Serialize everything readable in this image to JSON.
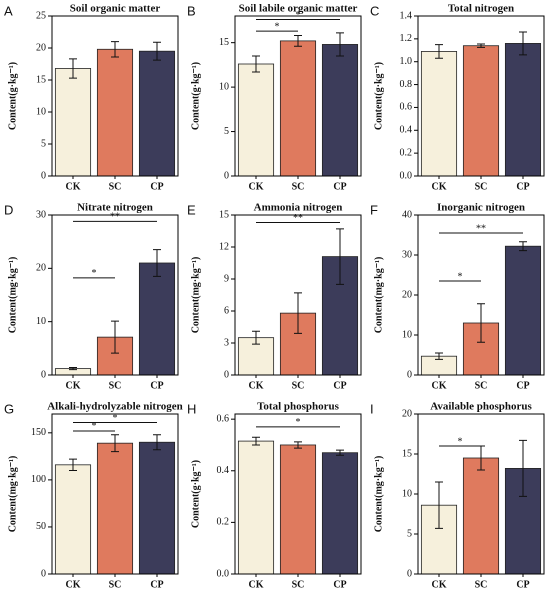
{
  "chart_data": [
    {
      "type": "bar",
      "panel": "A",
      "title": "Soil organic matter",
      "ylabel": "Content(g·kg⁻¹)",
      "categories": [
        "CK",
        "SC",
        "CP"
      ],
      "values": [
        16.8,
        19.8,
        19.5
      ],
      "errors": [
        1.5,
        1.2,
        1.4
      ],
      "colors": [
        "#f6f0dc",
        "#df7a5e",
        "#3c3c5a"
      ],
      "ylim": [
        0,
        25
      ],
      "yticks": [
        0,
        5,
        10,
        15,
        20,
        25
      ],
      "annotations": []
    },
    {
      "type": "bar",
      "panel": "B",
      "title": "Soil labile organic matter",
      "ylabel": "Content(g·kg⁻¹)",
      "categories": [
        "CK",
        "SC",
        "CP"
      ],
      "values": [
        12.6,
        15.2,
        14.8
      ],
      "errors": [
        0.9,
        0.6,
        1.3
      ],
      "colors": [
        "#f6f0dc",
        "#df7a5e",
        "#3c3c5a"
      ],
      "ylim": [
        0,
        18
      ],
      "yticks": [
        0,
        5,
        10,
        15
      ],
      "annotations": [
        {
          "label": "*",
          "from": 0,
          "to": 1,
          "y": 16.3
        },
        {
          "label": "*",
          "from": 0,
          "to": 2,
          "y": 17.6
        }
      ]
    },
    {
      "type": "bar",
      "panel": "C",
      "title": "Total nitrogen",
      "ylabel": "Content(g·kg⁻¹)",
      "categories": [
        "CK",
        "SC",
        "CP"
      ],
      "values": [
        1.09,
        1.14,
        1.16
      ],
      "errors": [
        0.06,
        0.015,
        0.1
      ],
      "colors": [
        "#f6f0dc",
        "#df7a5e",
        "#3c3c5a"
      ],
      "ylim": [
        0,
        1.4
      ],
      "yticks": [
        {
          "value": 0,
          "label": "0.0"
        },
        0.2,
        0.4,
        0.6,
        0.8,
        {
          "value": 1,
          "label": "1.0"
        },
        1.2,
        1.4
      ],
      "annotations": []
    },
    {
      "type": "bar",
      "panel": "D",
      "title": "Nitrate nitrogen",
      "ylabel": "Content(mg·kg⁻¹)",
      "categories": [
        "CK",
        "SC",
        "CP"
      ],
      "values": [
        1.2,
        7.1,
        21
      ],
      "errors": [
        0.2,
        3,
        2.5
      ],
      "colors": [
        "#f6f0dc",
        "#df7a5e",
        "#3c3c5a"
      ],
      "ylim": [
        0,
        30
      ],
      "yticks": [
        0,
        10,
        20,
        30
      ],
      "annotations": [
        {
          "label": "*",
          "from": 0,
          "to": 1,
          "y": 18.2
        },
        {
          "label": "**",
          "from": 0,
          "to": 2,
          "y": 28.8
        }
      ]
    },
    {
      "type": "bar",
      "panel": "E",
      "title": "Ammonia nitrogen",
      "ylabel": "Content(mg·kg⁻¹)",
      "categories": [
        "CK",
        "SC",
        "CP"
      ],
      "values": [
        3.5,
        5.8,
        11.1
      ],
      "errors": [
        0.6,
        1.9,
        2.6
      ],
      "colors": [
        "#f6f0dc",
        "#df7a5e",
        "#3c3c5a"
      ],
      "ylim": [
        0,
        15
      ],
      "yticks": [
        0,
        3,
        6,
        9,
        12,
        15
      ],
      "annotations": [
        {
          "label": "**",
          "from": 0,
          "to": 2,
          "y": 14.3
        }
      ]
    },
    {
      "type": "bar",
      "panel": "F",
      "title": "Inorganic nitrogen",
      "ylabel": "Content(mg·kg⁻¹)",
      "categories": [
        "CK",
        "SC",
        "CP"
      ],
      "values": [
        4.7,
        13,
        32.2
      ],
      "errors": [
        0.8,
        4.8,
        1.1
      ],
      "colors": [
        "#f6f0dc",
        "#df7a5e",
        "#3c3c5a"
      ],
      "ylim": [
        0,
        40
      ],
      "yticks": [
        0,
        10,
        20,
        30,
        40
      ],
      "annotations": [
        {
          "label": "*",
          "from": 0,
          "to": 1,
          "y": 23.5
        },
        {
          "label": "**",
          "from": 0,
          "to": 2,
          "y": 35.5
        }
      ]
    },
    {
      "type": "bar",
      "panel": "G",
      "title": "Alkali-hydrolyzable nitrogen",
      "ylabel": "Content(mg·kg⁻¹)",
      "categories": [
        "CK",
        "SC",
        "CP"
      ],
      "values": [
        116,
        139,
        140
      ],
      "errors": [
        6,
        9,
        8
      ],
      "colors": [
        "#f6f0dc",
        "#df7a5e",
        "#3c3c5a"
      ],
      "ylim": [
        0,
        170
      ],
      "yticks": [
        0,
        50,
        100,
        150
      ],
      "annotations": [
        {
          "label": "*",
          "from": 0,
          "to": 1,
          "y": 152
        },
        {
          "label": "*",
          "from": 0,
          "to": 2,
          "y": 161
        }
      ]
    },
    {
      "type": "bar",
      "panel": "H",
      "title": "Total phosphorus",
      "ylabel": "Content(g·kg⁻¹)",
      "categories": [
        "CK",
        "SC",
        "CP"
      ],
      "values": [
        0.515,
        0.5,
        0.47
      ],
      "errors": [
        0.015,
        0.012,
        0.01
      ],
      "colors": [
        "#f6f0dc",
        "#df7a5e",
        "#3c3c5a"
      ],
      "ylim": [
        0,
        0.62
      ],
      "yticks": [
        {
          "value": 0,
          "label": "0.0"
        },
        0.2,
        0.4,
        0.6
      ],
      "annotations": [
        {
          "label": "*",
          "from": 0,
          "to": 2,
          "y": 0.57
        }
      ]
    },
    {
      "type": "bar",
      "panel": "I",
      "title": "Available phosphorus",
      "ylabel": "Content(mg·kg⁻¹)",
      "categories": [
        "CK",
        "SC",
        "CP"
      ],
      "values": [
        8.6,
        14.5,
        13.2
      ],
      "errors": [
        2.9,
        1.5,
        3.5
      ],
      "colors": [
        "#f6f0dc",
        "#df7a5e",
        "#3c3c5a"
      ],
      "ylim": [
        0,
        20
      ],
      "yticks": [
        0,
        5,
        10,
        15,
        20
      ],
      "annotations": [
        {
          "label": "*",
          "from": 0,
          "to": 1,
          "y": 16
        }
      ]
    }
  ]
}
